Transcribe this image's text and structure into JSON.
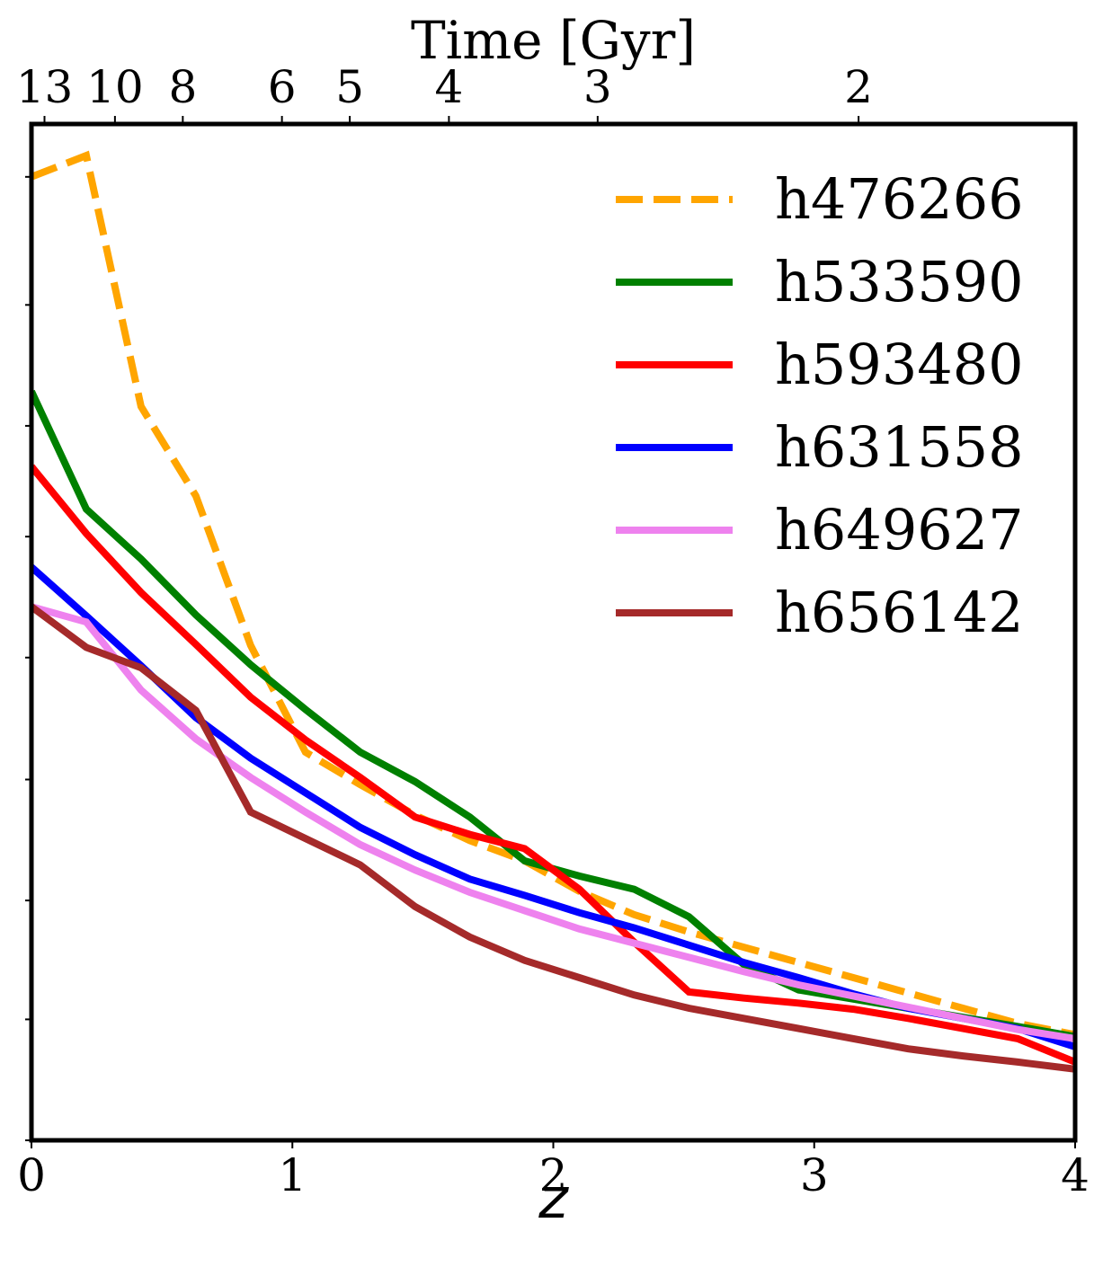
{
  "chart_data": {
    "type": "line",
    "xlabel": "z",
    "top_xlabel": "Time [Gyr]",
    "xlim": [
      0,
      4
    ],
    "ylim": [
      0,
      1
    ],
    "x_ticks": [
      "0",
      "1",
      "2",
      "3",
      "4"
    ],
    "top_ticks": [
      {
        "label": "13",
        "z": 0.05
      },
      {
        "label": "10",
        "z": 0.32
      },
      {
        "label": "8",
        "z": 0.58
      },
      {
        "label": "6",
        "z": 0.96
      },
      {
        "label": "5",
        "z": 1.22
      },
      {
        "label": "4",
        "z": 1.6
      },
      {
        "label": "3",
        "z": 2.17
      },
      {
        "label": "2",
        "z": 3.17
      }
    ],
    "y_tick_values": [
      0.0,
      0.119,
      0.236,
      0.355,
      0.475,
      0.594,
      0.703,
      0.822,
      0.948
    ],
    "legend_position": "top-right",
    "series": [
      {
        "name": "h476266",
        "color": "#ffa500",
        "dashed": true,
        "x": [
          0,
          0.21,
          0.42,
          0.63,
          0.84,
          1.05,
          1.26,
          1.47,
          1.68,
          1.89,
          2.1,
          2.31,
          2.52,
          2.73,
          2.94,
          3.15,
          3.36,
          3.57,
          3.78,
          4.0
        ],
        "y": [
          0.948,
          0.969,
          0.722,
          0.634,
          0.487,
          0.382,
          0.35,
          0.32,
          0.295,
          0.275,
          0.245,
          0.222,
          0.205,
          0.19,
          0.175,
          0.16,
          0.145,
          0.13,
          0.115,
          0.104
        ]
      },
      {
        "name": "h533590",
        "color": "#008000",
        "dashed": false,
        "x": [
          0,
          0.21,
          0.42,
          0.63,
          0.84,
          1.05,
          1.26,
          1.47,
          1.68,
          1.89,
          2.1,
          2.31,
          2.52,
          2.73,
          2.94,
          3.15,
          3.36,
          3.57,
          3.78,
          4.0
        ],
        "y": [
          0.737,
          0.621,
          0.572,
          0.517,
          0.468,
          0.424,
          0.382,
          0.353,
          0.318,
          0.275,
          0.26,
          0.247,
          0.22,
          0.173,
          0.148,
          0.139,
          0.13,
          0.121,
          0.112,
          0.102
        ]
      },
      {
        "name": "h593480",
        "color": "#ff0000",
        "dashed": false,
        "x": [
          0,
          0.21,
          0.42,
          0.63,
          0.84,
          1.05,
          1.26,
          1.47,
          1.68,
          1.89,
          2.1,
          2.31,
          2.52,
          2.73,
          2.94,
          3.15,
          3.36,
          3.57,
          3.78,
          4.0
        ],
        "y": [
          0.663,
          0.597,
          0.539,
          0.488,
          0.436,
          0.394,
          0.357,
          0.318,
          0.301,
          0.287,
          0.247,
          0.195,
          0.146,
          0.14,
          0.135,
          0.129,
          0.12,
          0.11,
          0.1,
          0.077
        ]
      },
      {
        "name": "h631558",
        "color": "#0000ff",
        "dashed": false,
        "x": [
          0,
          0.21,
          0.42,
          0.63,
          0.84,
          1.05,
          1.26,
          1.47,
          1.68,
          1.89,
          2.1,
          2.31,
          2.52,
          2.73,
          2.94,
          3.15,
          3.36,
          3.57,
          3.78,
          4.0
        ],
        "y": [
          0.564,
          0.516,
          0.467,
          0.416,
          0.376,
          0.342,
          0.308,
          0.281,
          0.257,
          0.241,
          0.224,
          0.209,
          0.192,
          0.175,
          0.16,
          0.144,
          0.13,
          0.12,
          0.11,
          0.092
        ]
      },
      {
        "name": "h649627",
        "color": "#ee82ee",
        "dashed": false,
        "x": [
          0,
          0.21,
          0.42,
          0.63,
          0.84,
          1.05,
          1.26,
          1.47,
          1.68,
          1.89,
          2.1,
          2.31,
          2.52,
          2.73,
          2.94,
          3.15,
          3.36,
          3.57,
          3.78,
          4.0
        ],
        "y": [
          0.525,
          0.51,
          0.443,
          0.395,
          0.357,
          0.323,
          0.291,
          0.266,
          0.244,
          0.226,
          0.208,
          0.194,
          0.18,
          0.166,
          0.153,
          0.142,
          0.131,
          0.12,
          0.109,
          0.1
        ]
      },
      {
        "name": "h656142",
        "color": "#a52a2a",
        "dashed": false,
        "x": [
          0,
          0.21,
          0.42,
          0.63,
          0.84,
          1.05,
          1.26,
          1.47,
          1.68,
          1.89,
          2.1,
          2.31,
          2.52,
          2.73,
          2.94,
          3.15,
          3.36,
          3.57,
          3.78,
          4.0
        ],
        "y": [
          0.525,
          0.485,
          0.465,
          0.423,
          0.323,
          0.297,
          0.271,
          0.23,
          0.2,
          0.177,
          0.16,
          0.143,
          0.13,
          0.12,
          0.11,
          0.1,
          0.09,
          0.083,
          0.077,
          0.07
        ]
      }
    ]
  }
}
